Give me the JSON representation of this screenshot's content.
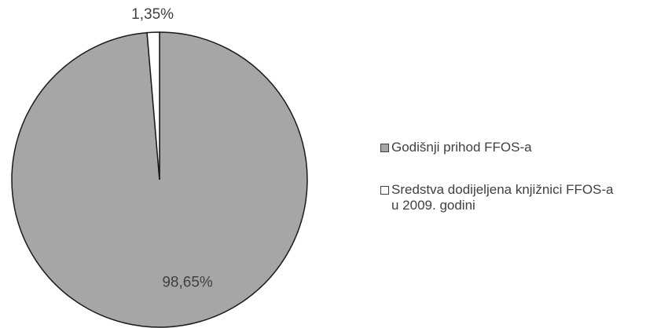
{
  "chart_data": {
    "type": "pie",
    "categories": [
      "Godišnji prihod FFOS-a",
      "Sredstva dodijeljena knjižnici FFOS-a u 2009. godini"
    ],
    "values": [
      98.65,
      1.35
    ],
    "value_labels": [
      "98,65%",
      "1,35%"
    ],
    "colors": [
      "#a6a6a6",
      "#ffffff"
    ],
    "legend": "right"
  }
}
